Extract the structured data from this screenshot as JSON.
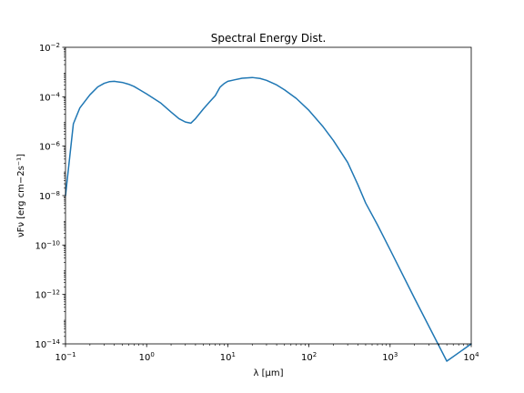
{
  "chart_data": {
    "type": "line",
    "title": "Spectral Energy Dist.",
    "xlabel": "λ [μm]",
    "ylabel": "νFν [erg cm−2s⁻¹]",
    "x_scale": "log",
    "y_scale": "log",
    "xlim": [
      0.1,
      10000
    ],
    "ylim": [
      1e-14,
      0.01
    ],
    "x_ticks": [
      {
        "value": 0.1,
        "base": "10",
        "exp": "−1"
      },
      {
        "value": 1,
        "base": "10",
        "exp": "0"
      },
      {
        "value": 10,
        "base": "10",
        "exp": "1"
      },
      {
        "value": 100,
        "base": "10",
        "exp": "2"
      },
      {
        "value": 1000,
        "base": "10",
        "exp": "3"
      },
      {
        "value": 10000,
        "base": "10",
        "exp": "4"
      }
    ],
    "y_ticks": [
      {
        "value": 1e-14,
        "base": "10",
        "exp": "−14"
      },
      {
        "value": 1e-12,
        "base": "10",
        "exp": "−12"
      },
      {
        "value": 1e-10,
        "base": "10",
        "exp": "−10"
      },
      {
        "value": 1e-08,
        "base": "10",
        "exp": "−8"
      },
      {
        "value": 1e-06,
        "base": "10",
        "exp": "−6"
      },
      {
        "value": 0.0001,
        "base": "10",
        "exp": "−4"
      },
      {
        "value": 0.01,
        "base": "10",
        "exp": "−2"
      }
    ],
    "grid": false,
    "legend": "none",
    "series": [
      {
        "color": "#1f77b4",
        "x": [
          0.1,
          0.125,
          0.15,
          0.2,
          0.25,
          0.3,
          0.35,
          0.4,
          0.5,
          0.6,
          0.7,
          0.8,
          1.0,
          1.5,
          2.0,
          2.5,
          3.0,
          3.5,
          4.0,
          5.0,
          6.0,
          7.0,
          8.0,
          8.5,
          9.0,
          10,
          12,
          15,
          20,
          25,
          30,
          40,
          50,
          70,
          100,
          150,
          200,
          300,
          400,
          500,
          700,
          1000,
          2000,
          5000,
          10000
        ],
        "y": [
          1e-08,
          8e-06,
          3.5e-05,
          0.00012,
          0.00025,
          0.00035,
          0.00041,
          0.00042,
          0.00038,
          0.00032,
          0.00026,
          0.0002,
          0.00013,
          5.5e-05,
          2.4e-05,
          1.3e-05,
          9.5e-06,
          8.5e-06,
          1.3e-05,
          3.2e-05,
          6.3e-05,
          0.00011,
          0.00024,
          0.00029,
          0.00034,
          0.00042,
          0.00048,
          0.00056,
          0.0006,
          0.00055,
          0.00046,
          0.0003,
          0.00019,
          8.5e-05,
          2.8e-05,
          6e-06,
          1.7e-06,
          2.2e-07,
          2.8e-08,
          5e-09,
          6.5e-10,
          6.5e-11,
          7e-13,
          2e-15,
          1e-14
        ]
      }
    ]
  }
}
